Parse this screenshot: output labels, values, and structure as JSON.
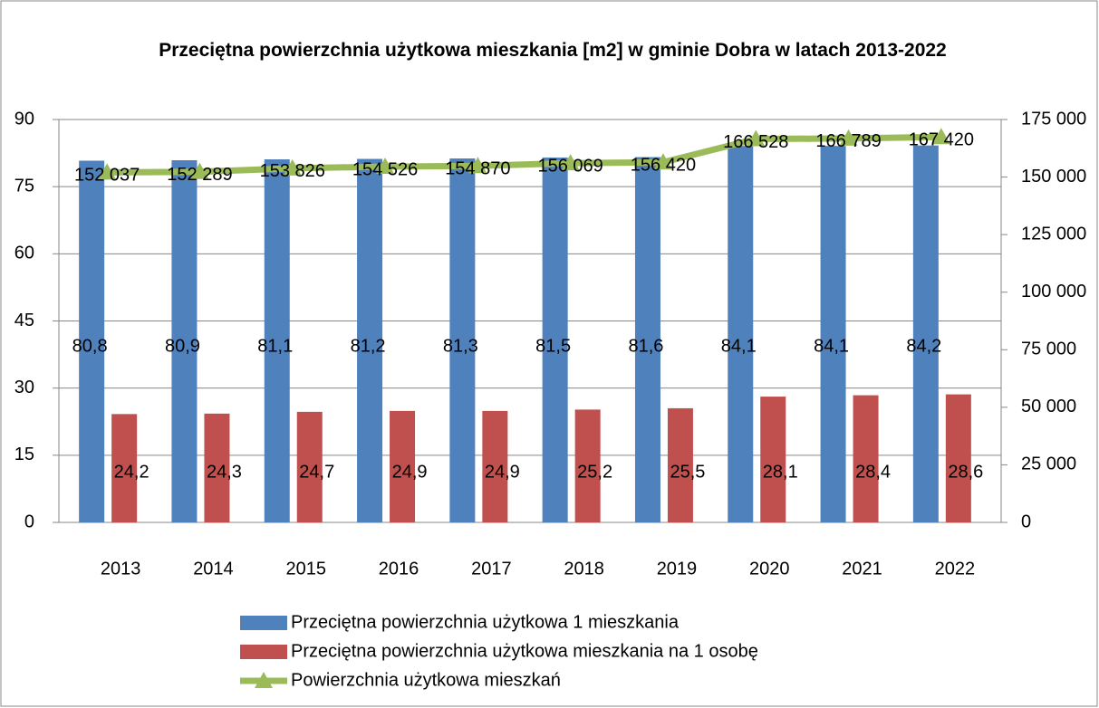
{
  "chart_data": {
    "type": "bar",
    "title": "Przeciętna powierzchnia użytkowa mieszkania [m2] w gminie Dobra w latach 2013-2022",
    "categories": [
      "2013",
      "2014",
      "2015",
      "2016",
      "2017",
      "2018",
      "2019",
      "2020",
      "2021",
      "2022"
    ],
    "series": [
      {
        "name": "Przeciętna powierzchnia użytkowa 1 mieszkania",
        "color": "#4f81bd",
        "type": "bar",
        "values": [
          80.8,
          80.9,
          81.1,
          81.2,
          81.3,
          81.5,
          81.6,
          84.1,
          84.1,
          84.2
        ],
        "value_labels": [
          "80,8",
          "80,9",
          "81,1",
          "81,2",
          "81,3",
          "81,5",
          "81,6",
          "84,1",
          "84,1",
          "84,2"
        ]
      },
      {
        "name": "Przeciętna powierzchnia użytkowa mieszkania na 1 osobę",
        "color": "#c0504d",
        "type": "bar",
        "values": [
          24.2,
          24.3,
          24.7,
          24.9,
          24.9,
          25.2,
          25.5,
          28.1,
          28.4,
          28.6
        ],
        "value_labels": [
          "24,2",
          "24,3",
          "24,7",
          "24,9",
          "24,9",
          "25,2",
          "25,5",
          "28,1",
          "28,4",
          "28,6"
        ]
      },
      {
        "name": "Powierzchnia użytkowa mieszkań",
        "color": "#9bbb59",
        "type": "line",
        "axis": "y2",
        "values": [
          152037,
          152289,
          153826,
          154526,
          154870,
          156069,
          156420,
          166528,
          166789,
          167420
        ],
        "value_labels": [
          "152 037",
          "152 289",
          "153 826",
          "154 526",
          "154 870",
          "156 069",
          "156 420",
          "166 528",
          "166 789",
          "167 420"
        ]
      }
    ],
    "ylim": [
      0,
      90
    ],
    "yticks": [
      0,
      15,
      30,
      45,
      60,
      75,
      90
    ],
    "y2lim": [
      0,
      175000
    ],
    "y2ticks": [
      0,
      {
        "value": 25000,
        "label": "25 000"
      },
      {
        "value": 50000,
        "label": "50 000"
      },
      {
        "value": 75000,
        "label": "75 000"
      },
      {
        "value": 100000,
        "label": "100 000"
      },
      {
        "value": 125000,
        "label": "125 000"
      },
      {
        "value": 150000,
        "label": "150 000"
      },
      {
        "value": 175000,
        "label": "175 000"
      }
    ],
    "grid": true,
    "legend": "bottom"
  }
}
